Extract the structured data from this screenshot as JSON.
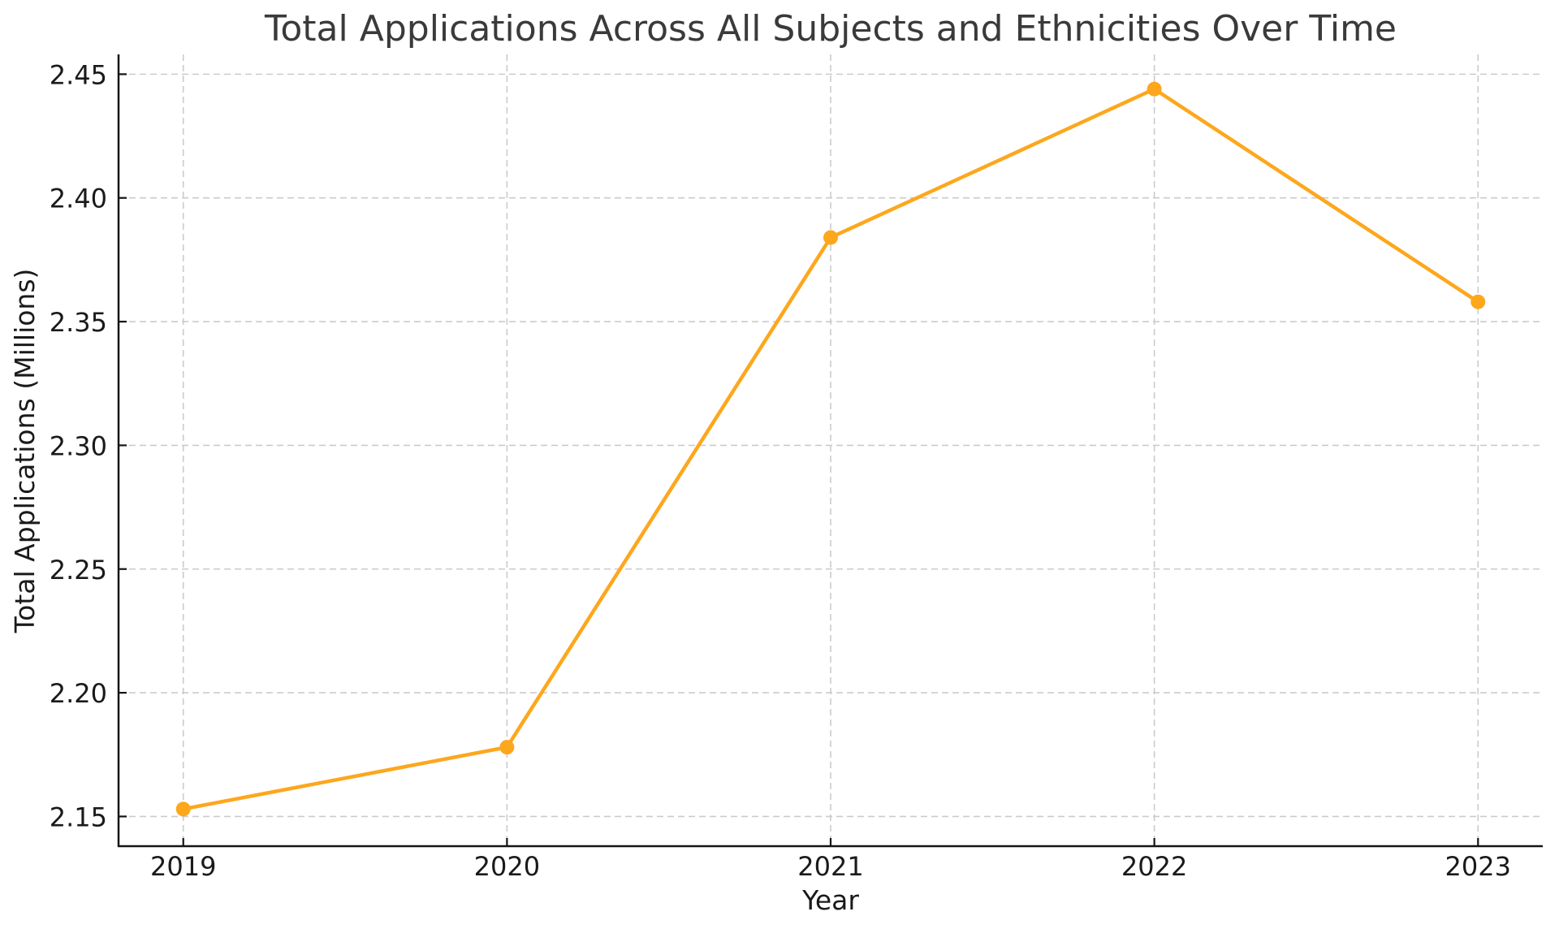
{
  "chart_data": {
    "type": "line",
    "title": "Total Applications Across All Subjects and Ethnicities Over Time",
    "xlabel": "Year",
    "ylabel": "Total Applications (Millions)",
    "x": [
      2019,
      2020,
      2021,
      2022,
      2023
    ],
    "x_tick_labels": [
      "2019",
      "2020",
      "2021",
      "2022",
      "2023"
    ],
    "series": [
      {
        "name": "Total Applications",
        "values": [
          2.153,
          2.178,
          2.384,
          2.444,
          2.358
        ],
        "color": "#FDA71D",
        "marker": "circle"
      }
    ],
    "y_ticks": [
      2.15,
      2.2,
      2.25,
      2.3,
      2.35,
      2.4,
      2.45
    ],
    "y_tick_labels": [
      "2.15",
      "2.20",
      "2.25",
      "2.30",
      "2.35",
      "2.40",
      "2.45"
    ],
    "xlim": [
      2018.8,
      2023.2
    ],
    "ylim": [
      2.138,
      2.458
    ],
    "grid": {
      "visible": true,
      "style": "dashed",
      "axes": "both"
    },
    "legend": {
      "visible": false
    },
    "ticks_direction": "in",
    "colors": {
      "line": "#FDA71D",
      "grid": "#CBCBCB",
      "spine": "#141414",
      "tick_text": "#1A1A1A",
      "title_text": "#3A3A3A",
      "label_text": "#1A1A1A",
      "background": "#FFFFFF"
    }
  }
}
